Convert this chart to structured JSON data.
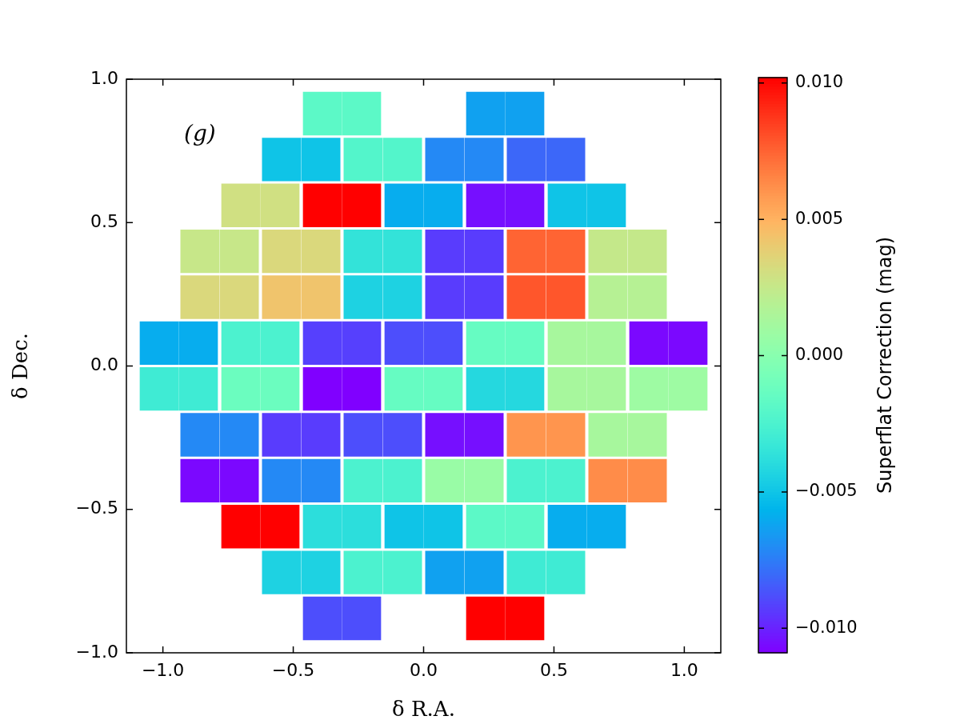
{
  "chart_data": {
    "type": "heatmap",
    "xlabel": "δ R.A.",
    "ylabel": "δ Dec.",
    "clabel": "Superflat Correction (mag)",
    "annotations": [
      "(g)"
    ],
    "x": [
      -1.017,
      -0.861,
      -0.704,
      -0.548,
      -0.391,
      -0.235,
      -0.078,
      0.078,
      0.235,
      0.391,
      0.548,
      0.704,
      0.861,
      1.017
    ],
    "y": [
      0.88,
      0.72,
      0.56,
      0.4,
      0.24,
      0.08,
      -0.08,
      -0.24,
      -0.4,
      -0.56,
      -0.72,
      -0.88
    ],
    "cells": [
      [
        null,
        null,
        null,
        null,
        -0.0018,
        -0.0018,
        null,
        null,
        -0.0063,
        -0.0063,
        null,
        null,
        null,
        null
      ],
      [
        null,
        null,
        null,
        -0.005,
        -0.005,
        -0.0022,
        -0.0022,
        -0.0071,
        -0.0071,
        -0.0081,
        -0.0081,
        null,
        null,
        null
      ],
      [
        null,
        null,
        0.003,
        0.003,
        0.0102,
        0.0102,
        -0.0059,
        -0.0059,
        -0.0105,
        -0.0105,
        -0.005,
        -0.005,
        null,
        null
      ],
      [
        null,
        0.0026,
        0.0026,
        0.0034,
        0.0034,
        -0.0035,
        -0.0035,
        -0.0093,
        -0.0093,
        0.0075,
        0.0075,
        0.0025,
        0.0025,
        null
      ],
      [
        null,
        0.0034,
        0.0034,
        0.0043,
        0.0043,
        -0.0044,
        -0.0044,
        -0.0093,
        -0.0093,
        0.0079,
        0.0079,
        0.0019,
        0.0019,
        null
      ],
      [
        -0.0059,
        -0.0059,
        -0.0025,
        -0.0025,
        -0.0092,
        -0.0092,
        -0.0088,
        -0.0088,
        -0.0014,
        -0.0014,
        0.0013,
        0.0013,
        -0.0107,
        -0.0107
      ],
      [
        -0.003,
        -0.003,
        -0.0012,
        -0.0012,
        -0.0109,
        -0.0109,
        -0.0014,
        -0.0014,
        -0.0041,
        -0.0041,
        0.0013,
        0.0013,
        0.0009,
        0.0009
      ],
      [
        null,
        -0.0071,
        -0.0071,
        -0.0093,
        -0.0093,
        -0.0088,
        -0.0088,
        -0.0105,
        -0.0105,
        0.006,
        0.006,
        0.0013,
        0.0013,
        null
      ],
      [
        null,
        -0.0107,
        -0.0107,
        -0.0071,
        -0.0071,
        -0.0025,
        -0.0025,
        0.0007,
        0.0007,
        -0.0025,
        -0.0025,
        0.0063,
        0.0063,
        null
      ],
      [
        null,
        null,
        0.0102,
        0.0102,
        -0.0038,
        -0.0038,
        -0.005,
        -0.005,
        -0.0018,
        -0.0018,
        -0.0059,
        -0.0059,
        null,
        null
      ],
      [
        null,
        null,
        null,
        -0.0044,
        -0.0044,
        -0.0025,
        -0.0025,
        -0.0063,
        -0.0063,
        -0.003,
        -0.003,
        null,
        null,
        null
      ],
      [
        null,
        null,
        null,
        null,
        -0.0088,
        -0.0088,
        null,
        null,
        0.0102,
        0.0102,
        null,
        null,
        null,
        null
      ]
    ],
    "grid": false,
    "xlim": [
      -1.14,
      1.14
    ],
    "ylim": [
      -1.0,
      1.0
    ],
    "xticks": [
      {
        "value": -1.0,
        "label": "−1.0"
      },
      {
        "value": -0.5,
        "label": "−0.5"
      },
      {
        "value": 0,
        "label": "0.0"
      },
      {
        "value": 0.5,
        "label": "0.5"
      },
      {
        "value": 1.0,
        "label": "1.0"
      }
    ],
    "yticks": [
      {
        "value": -1.0,
        "label": "−1.0"
      },
      {
        "value": -0.5,
        "label": "−0.5"
      },
      {
        "value": 0,
        "label": "0.0"
      },
      {
        "value": 0.5,
        "label": "0.5"
      },
      {
        "value": 1.0,
        "label": "1.0"
      }
    ],
    "clim": [
      -0.0109,
      0.0102
    ],
    "cticks": [
      {
        "value": -0.01,
        "label": "−0.010"
      },
      {
        "value": -0.005,
        "label": "−0.005"
      },
      {
        "value": 0,
        "label": "0.000"
      },
      {
        "value": 0.005,
        "label": "0.005"
      },
      {
        "value": 0.01,
        "label": "0.010"
      }
    ]
  }
}
